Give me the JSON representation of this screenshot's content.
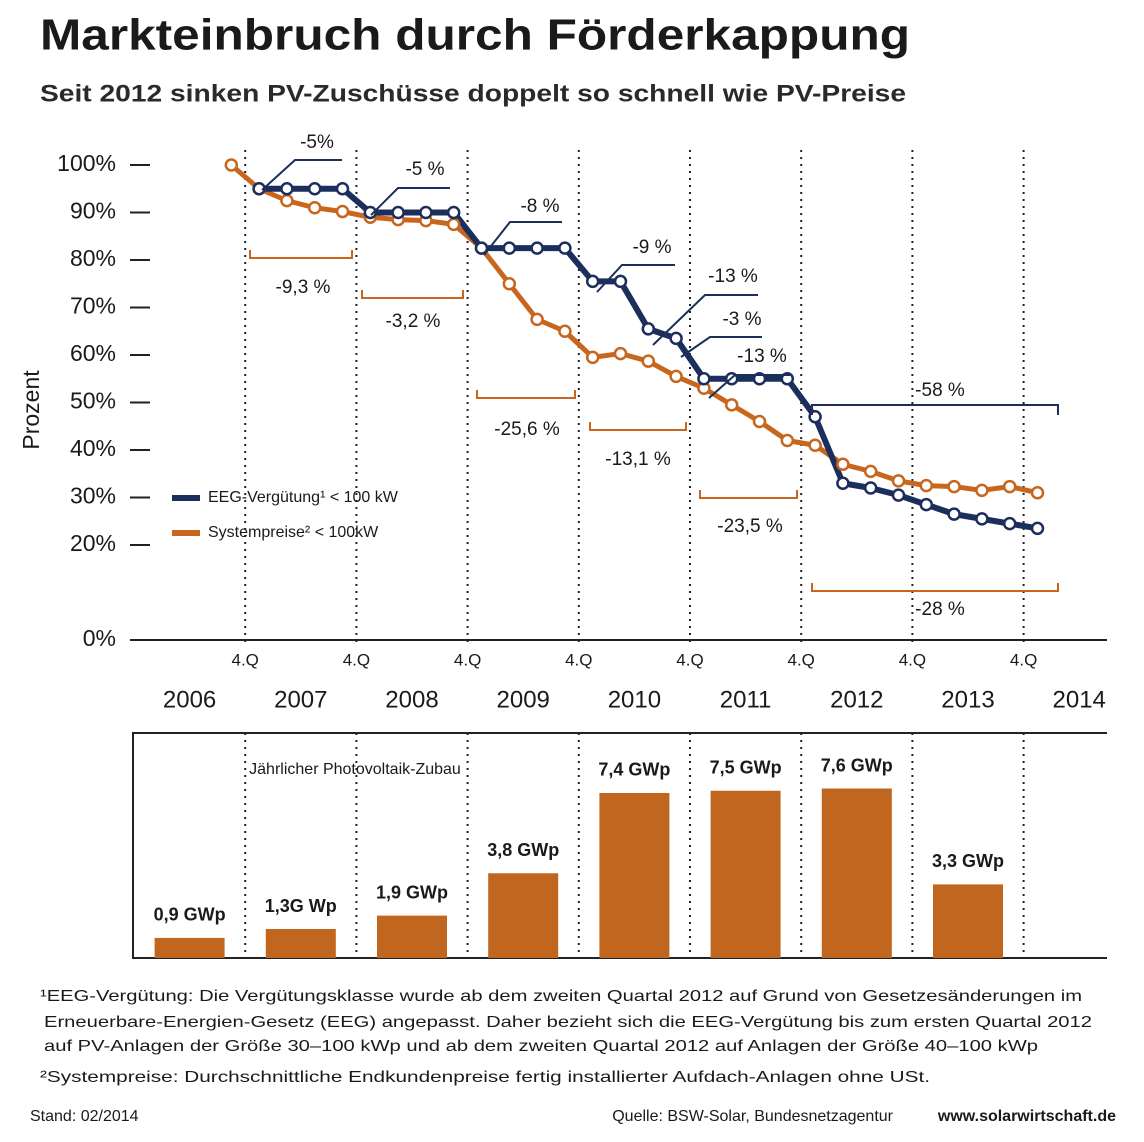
{
  "title": "Markteinbruch durch Förderkappung",
  "subtitle": "Seit 2012 sinken PV-Zuschüsse doppelt so schnell wie PV-Preise",
  "footnotes": [
    [
      "¹EEG-Vergütung: Die Vergütungsklasse wurde ab dem zweiten Quartal 2012 auf Grund von Gesetzesänderungen im",
      "Erneuerbare-Energien-Gesetz (EEG) angepasst. Daher bezieht sich die EEG-Vergütung bis zum ersten Quartal 2012",
      "auf PV-Anlagen der Größe 30–100 kWp und ab dem zweiten Quartal 2012 auf Anlagen der Größe 40–100 kWp"
    ],
    [
      "²Systempreise: Durchschnittliche Endkundenpreise fertig installierter Aufdach-Anlagen ohne USt."
    ]
  ],
  "stand": "Stand: 02/2014",
  "source": "Quelle: BSW-Solar, Bundesnetzagentur",
  "website": "www.solarwirtschaft.de",
  "chart_data": [
    {
      "type": "line",
      "y_label": "Prozent",
      "xlim": [
        2006,
        2014.75
      ],
      "xticks": [
        {
          "value": 2006.5,
          "label": "2006"
        },
        {
          "value": 2007.5,
          "label": "2007"
        },
        {
          "value": 2008.5,
          "label": "2008"
        },
        {
          "value": 2009.5,
          "label": "2009"
        },
        {
          "value": 2010.5,
          "label": "2010"
        },
        {
          "value": 2011.5,
          "label": "2011"
        },
        {
          "value": 2012.5,
          "label": "2012"
        },
        {
          "value": 2013.5,
          "label": "2013"
        },
        {
          "value": 2014.5,
          "label": "2014"
        }
      ],
      "quarter_ticks": [
        {
          "value": 2007,
          "label": "4.Q"
        },
        {
          "value": 2008,
          "label": "4.Q"
        },
        {
          "value": 2009,
          "label": "4.Q"
        },
        {
          "value": 2010,
          "label": "4.Q"
        },
        {
          "value": 2011,
          "label": "4.Q"
        },
        {
          "value": 2012,
          "label": "4.Q"
        },
        {
          "value": 2013,
          "label": "4.Q"
        },
        {
          "value": 2014,
          "label": "4.Q"
        }
      ],
      "ylim": [
        0,
        100
      ],
      "yticks": [
        {
          "value": 0,
          "label": "0%"
        },
        {
          "value": 20,
          "label": "20%"
        },
        {
          "value": 30,
          "label": "30%"
        },
        {
          "value": 40,
          "label": "40%"
        },
        {
          "value": 50,
          "label": "50%"
        },
        {
          "value": 60,
          "label": "60%"
        },
        {
          "value": 70,
          "label": "70%"
        },
        {
          "value": 80,
          "label": "80%"
        },
        {
          "value": 90,
          "label": "90%"
        },
        {
          "value": 100,
          "label": "100%"
        }
      ],
      "x": [
        2006.875,
        2007.125,
        2007.375,
        2007.625,
        2007.875,
        2008.125,
        2008.375,
        2008.625,
        2008.875,
        2009.125,
        2009.375,
        2009.625,
        2009.875,
        2010.125,
        2010.375,
        2010.625,
        2010.875,
        2011.125,
        2011.375,
        2011.625,
        2011.875,
        2012.125,
        2012.375,
        2012.625,
        2012.875,
        2013.125,
        2013.375,
        2013.625,
        2013.875,
        2014.125
      ],
      "series": [
        {
          "name": "Systempreise² < 100kW",
          "color": "#c8661e",
          "values": [
            100,
            95,
            92.5,
            91,
            90.2,
            89,
            88.5,
            88.3,
            87.5,
            82.5,
            75,
            67.5,
            65,
            59.5,
            60.3,
            58.7,
            55.5,
            53,
            49.5,
            46,
            42,
            41,
            37,
            35.5,
            33.5,
            32.5,
            32.3,
            31.5,
            32.3,
            31
          ]
        },
        {
          "name": "EEG-Vergütung¹ < 100 kW",
          "color": "#1c2e5c",
          "values": [
            null,
            95,
            95,
            95,
            95,
            90,
            90,
            90,
            90,
            82.5,
            82.5,
            82.5,
            82.5,
            75.5,
            75.5,
            65.5,
            63.5,
            55,
            55,
            55,
            55,
            47,
            33,
            32,
            30.5,
            28.5,
            26.5,
            25.5,
            24.5,
            23.5
          ]
        }
      ],
      "annotations": [
        {
          "text": "-5%",
          "series": 1
        },
        {
          "text": "-5 %",
          "series": 1
        },
        {
          "text": "-8 %",
          "series": 1
        },
        {
          "text": "-9 %",
          "series": 1
        },
        {
          "text": "-13 %",
          "series": 1
        },
        {
          "text": "-3 %",
          "series": 1
        },
        {
          "text": "-13 %",
          "series": 1
        },
        {
          "text": "-58 %",
          "series": 1
        },
        {
          "text": "-9,3 %",
          "series": 0
        },
        {
          "text": "-3,2 %",
          "series": 0
        },
        {
          "text": "-25,6 %",
          "series": 0
        },
        {
          "text": "-13,1 %",
          "series": 0
        },
        {
          "text": "-23,5 %",
          "series": 0
        },
        {
          "text": "-28 %",
          "series": 0
        }
      ]
    },
    {
      "type": "bar",
      "subtitle": "Jährlicher Photovoltaik-Zubau",
      "color": "#c0661f",
      "xlim": [
        2006,
        2014.75
      ],
      "x": [
        2006.5,
        2007.5,
        2008.5,
        2009.5,
        2010.5,
        2011.5,
        2012.5,
        2013.5
      ],
      "ylim": [
        0,
        10
      ],
      "values": [
        0.9,
        1.3,
        1.9,
        3.8,
        7.4,
        7.5,
        7.6,
        3.3
      ],
      "value_labels": [
        "0,9 GWp",
        "1,3G Wp",
        "1,9 GWp",
        "3,8 GWp",
        "7,4 GWp",
        "7,5 GWp",
        "7,6 GWp",
        "3,3 GWp"
      ]
    }
  ]
}
